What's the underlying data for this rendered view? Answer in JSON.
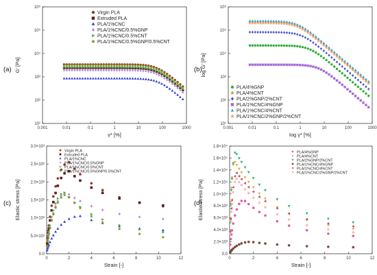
{
  "chart_data": [
    {
      "panel": "(a)",
      "type": "scatter",
      "xlabel": "γ* [%]",
      "ylabel": "G' [Pa]",
      "xscale": "log",
      "yscale": "log",
      "xlim": [
        0.001,
        1000
      ],
      "ylim": [
        10,
        1000000
      ],
      "xticks": [
        "0.001",
        "0.01",
        "0.1",
        "1",
        "10",
        "100",
        "1000"
      ],
      "yticks": [
        "10¹",
        "10²",
        "10³",
        "10⁴",
        "10⁵",
        "10⁶"
      ],
      "legend_position": "top-right",
      "series": [
        {
          "name": "Virgin PLA",
          "color": "#8b3a2a",
          "marker": "circle",
          "plateau": 3400,
          "gamma_c": 60
        },
        {
          "name": "Extruded PLA",
          "color": "#5a1f1f",
          "marker": "square",
          "plateau": 2400,
          "gamma_c": 60
        },
        {
          "name": "PLA/1%CNC",
          "color": "#2f3fd0",
          "marker": "triangle-up",
          "plateau": 850,
          "gamma_c": 70
        },
        {
          "name": "PLA/1%CNC/0.5%GNP",
          "color": "#b98ae0",
          "marker": "diamond",
          "plateau": 1900,
          "gamma_c": 60
        },
        {
          "name": "PLA/1%CNC/0.5%CNT",
          "color": "#3bb54a",
          "marker": "triangle-right",
          "plateau": 2600,
          "gamma_c": 60
        },
        {
          "name": "PLA/1%CNC/0.5%GNP/0.5%CNT",
          "color": "#8c8c1e",
          "marker": "star",
          "plateau": 3100,
          "gamma_c": 60
        }
      ]
    },
    {
      "panel": "(b)",
      "type": "scatter",
      "xlabel": "log γ* [%]",
      "ylabel": "log G' [Pa]",
      "xscale": "log",
      "yscale": "log",
      "xlim": [
        0.001,
        1000
      ],
      "ylim": [
        10,
        1000000
      ],
      "xticks": [
        "0.001",
        "0.01",
        "0.1",
        "1",
        "10",
        "100",
        "1000"
      ],
      "yticks": [
        "10¹",
        "10²",
        "10³",
        "10⁴",
        "10⁵",
        "10⁶"
      ],
      "legend_position": "bottom-left",
      "series": [
        {
          "name": "PLA/4%GNP",
          "color": "#2fae3a",
          "marker": "circle",
          "plateau": 22000,
          "gamma_c": 2.5
        },
        {
          "name": "PLA/4%CNT",
          "color": "#c89a2a",
          "marker": "star",
          "plateau": 220000,
          "gamma_c": 0.8
        },
        {
          "name": "PLA/2%GNP/2%CNT",
          "color": "#4a55c8",
          "marker": "diamond",
          "plateau": 82000,
          "gamma_c": 1.2
        },
        {
          "name": "PLA/1%CNC/4%GNP",
          "color": "#a86ad8",
          "marker": "square",
          "plateau": 3300,
          "gamma_c": 6
        },
        {
          "name": "PLA/1%CNC/4%CNT",
          "color": "#3aa0e0",
          "marker": "triangle-up",
          "plateau": 250000,
          "gamma_c": 0.8
        },
        {
          "name": "PLA/1%CNC/2%GNP/2%CNT",
          "color": "#f0a070",
          "marker": "star",
          "plateau": 200000,
          "gamma_c": 0.8
        }
      ]
    },
    {
      "panel": "(c)",
      "type": "scatter",
      "xlabel": "Strain [-]",
      "ylabel": "Elastic stress [Pa]",
      "xlim": [
        0,
        12
      ],
      "ylim": [
        0,
        3000
      ],
      "xticks": [
        "0",
        "2",
        "4",
        "6",
        "8",
        "10",
        "12"
      ],
      "yticks": [
        "0.0",
        "5.0×10²",
        "1.0×10³",
        "1.5×10³",
        "2.0×10³",
        "2.5×10³",
        "3.0×10³"
      ],
      "legend_position": "top-left",
      "series": [
        {
          "name": "Virgin PLA",
          "color": "#8b3a2a",
          "marker": "circle",
          "peak": 2550,
          "peak_x": 2.0,
          "end": 1200
        },
        {
          "name": "Extruded PLA",
          "color": "#5a1f1f",
          "marker": "square",
          "peak": 2300,
          "peak_x": 2.0,
          "end": 1250
        },
        {
          "name": "PLA/1%CNC",
          "color": "#2f3fd0",
          "marker": "triangle-up",
          "peak": 1050,
          "peak_x": 3.0,
          "end": 600
        },
        {
          "name": "PLA/1%CNC/0.5%GNP",
          "color": "#b98ae0",
          "marker": "diamond",
          "peak": 1700,
          "peak_x": 1.8,
          "end": 900
        },
        {
          "name": "PLA/1%CNC/0.5%CNT",
          "color": "#3bb54a",
          "marker": "triangle-right",
          "peak": 1700,
          "peak_x": 1.6,
          "end": 500
        },
        {
          "name": "PLA/1%CNC/0.5%GNP/0.5%CNT",
          "color": "#8c8c1e",
          "marker": "star",
          "peak": 1650,
          "peak_x": 1.8,
          "end": 350
        }
      ]
    },
    {
      "panel": "(d)",
      "type": "scatter",
      "xlabel": "Strain [-]",
      "ylabel": "Elastic stress [Pa]",
      "xlim": [
        0,
        12
      ],
      "ylim": [
        0,
        18000
      ],
      "xticks": [
        "0",
        "2",
        "4",
        "6",
        "8",
        "10",
        "12"
      ],
      "yticks": [
        "0.0",
        "2.0×10³",
        "4.0×10³",
        "6.0×10³",
        "8.0×10³",
        "1.0×10⁴",
        "1.2×10⁴",
        "1.4×10⁴",
        "1.6×10⁴",
        "1.8×10⁴"
      ],
      "legend_position": "top-right",
      "series": [
        {
          "name": "PLA/4%GNP",
          "color": "#e060a0",
          "marker": "circle",
          "peak": 9000,
          "peak_x": 1.2,
          "end": 2500
        },
        {
          "name": "PLA/4%CNT",
          "color": "#d8b040",
          "marker": "triangle-down",
          "peak": 15500,
          "peak_x": 0.4,
          "end": 3500
        },
        {
          "name": "PLA/2%GNP/2%CNT",
          "color": "#2fae7a",
          "marker": "triangle-down",
          "peak": 17000,
          "peak_x": 0.5,
          "end": 4500
        },
        {
          "name": "PLA/1%CNC/4%GNP",
          "color": "#7a4a3a",
          "marker": "circle",
          "peak": 2000,
          "peak_x": 1.8,
          "end": 1000
        },
        {
          "name": "PLA/1%CNC/4%CNT",
          "color": "#b85060",
          "marker": "triangle-left",
          "peak": 13500,
          "peak_x": 0.6,
          "end": 4000
        },
        {
          "name": "PLA/1%CNC/2%GNP/2%CNT",
          "color": "#f5b0a0",
          "marker": "star",
          "peak": 12500,
          "peak_x": 0.6,
          "end": 3000
        }
      ]
    }
  ]
}
